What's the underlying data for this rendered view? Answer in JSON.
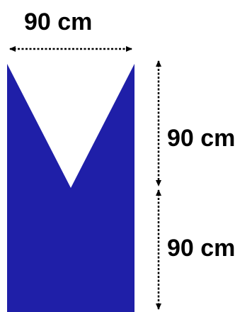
{
  "diagram": {
    "shape_color": "#1f1fa8",
    "dimension_line_color": "#000000",
    "labels": {
      "width": "90 cm",
      "upper_height": "90 cm",
      "lower_height": "90 cm"
    }
  }
}
